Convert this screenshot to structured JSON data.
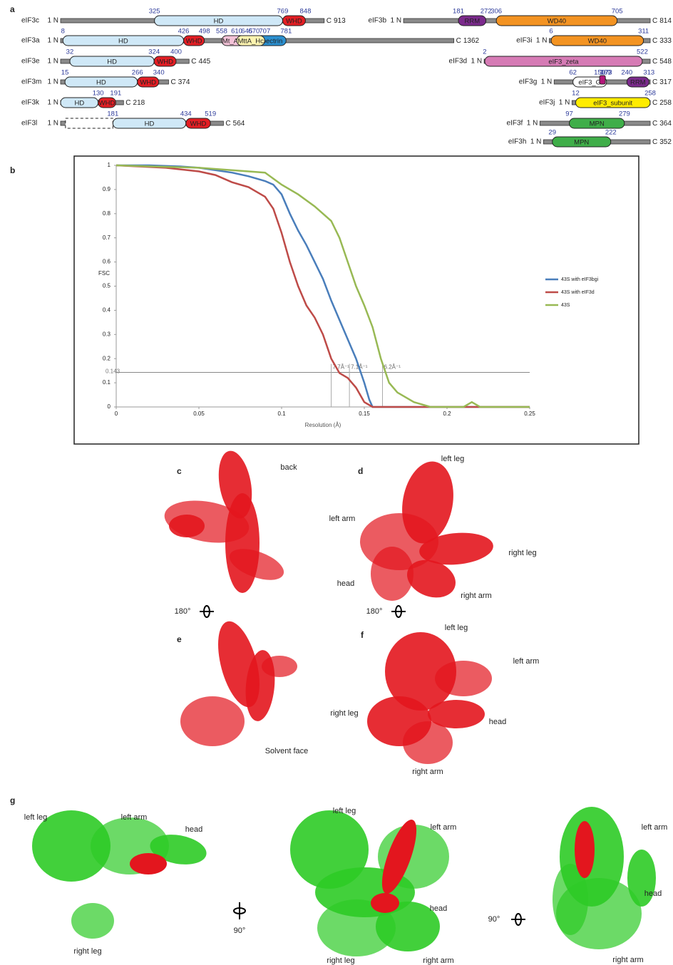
{
  "panel_letters": [
    "a",
    "b",
    "c",
    "d",
    "e",
    "f",
    "g"
  ],
  "domain_map": {
    "proteins": [
      {
        "name": "eIF3c",
        "n_label": "1 N",
        "c_label": "C",
        "length": 913,
        "domains": [
          {
            "name": "HD",
            "start": 325,
            "color": "#cfe8f7"
          },
          {
            "name": "WHD",
            "start": 769,
            "end": 848,
            "color": "#e31e24"
          }
        ]
      },
      {
        "name": "eIF3a",
        "n_label": "1 N",
        "c_label": "C",
        "length": 1362,
        "domains": [
          {
            "name": "HD",
            "start": 8,
            "color": "#cfe8f7"
          },
          {
            "name": "WHD",
            "start": 426,
            "end": 498,
            "color": "#e31e24"
          },
          {
            "name": "Mt_ATP",
            "start": 558,
            "end": 645,
            "color": "#f4c3d8"
          },
          {
            "name": "Spectrin",
            "start": 670,
            "end": 781,
            "color": "#2b8fcf"
          },
          {
            "name": "MttA_Hc",
            "start": 610,
            "end": 707,
            "color": "#fdf4b0"
          }
        ]
      },
      {
        "name": "eIF3e",
        "n_label": "1 N",
        "c_label": "C",
        "length": 445,
        "domains": [
          {
            "name": "HD",
            "start": 32,
            "color": "#cfe8f7"
          },
          {
            "name": "WHD",
            "start": 324,
            "end": 400,
            "color": "#e31e24"
          }
        ]
      },
      {
        "name": "eIF3m",
        "n_label": "1 N",
        "c_label": "C",
        "length": 374,
        "domains": [
          {
            "name": "HD",
            "start": 15,
            "color": "#cfe8f7"
          },
          {
            "name": "WHD",
            "start": 266,
            "end": 340,
            "color": "#e31e24"
          }
        ]
      },
      {
        "name": "eIF3k",
        "n_label": "1 N",
        "c_label": "C",
        "length": 218,
        "domains": [
          {
            "name": "HD",
            "color": "#cfe8f7"
          },
          {
            "name": "WHD",
            "start": 130,
            "end": 191,
            "color": "#e31e24"
          }
        ]
      },
      {
        "name": "eIF3l",
        "n_label": "1 N",
        "c_label": "C",
        "length": 564,
        "domains": [
          {
            "name": "HD",
            "dashed_end": 181,
            "color": "#cfe8f7"
          },
          {
            "name": "WHD",
            "start": 434,
            "end": 519,
            "color": "#e31e24"
          }
        ]
      },
      {
        "name": "eIF3b",
        "n_label": "1 N",
        "c_label": "C",
        "length": 814,
        "domains": [
          {
            "name": "RRM",
            "start": 181,
            "end": 272,
            "color": "#7b2a8c"
          },
          {
            "name": "WD40",
            "start": 306,
            "end": 705,
            "color": "#f39322"
          }
        ]
      },
      {
        "name": "eIF3i",
        "n_label": "1 N",
        "c_label": "C",
        "length": 333,
        "domains": [
          {
            "name": "WD40",
            "start": 6,
            "end": 311,
            "color": "#f39322"
          }
        ]
      },
      {
        "name": "eIF3d",
        "n_label": "1 N",
        "c_label": "C",
        "length": 548,
        "domains": [
          {
            "name": "eIF3_zeta",
            "start": 2,
            "end": 522,
            "color": "#d67bb5"
          }
        ]
      },
      {
        "name": "eIF3g",
        "n_label": "1 N",
        "c_label": "C",
        "length": 317,
        "domains": [
          {
            "name": "eIF3_G",
            "start": 62,
            "end": 173,
            "color": "#ffffff"
          },
          {
            "start": 150,
            "end": 169,
            "color": "#b5177a"
          },
          {
            "name": "RRM",
            "start": 240,
            "end": 313,
            "color": "#7b2a8c"
          }
        ]
      },
      {
        "name": "eIF3j",
        "n_label": "1 N",
        "c_label": "C",
        "length": 258,
        "domains": [
          {
            "name": "eIF3_subunit",
            "start": 12,
            "end": 258,
            "color": "#ffec00"
          }
        ]
      },
      {
        "name": "eIF3f",
        "n_label": "1 N",
        "c_label": "C",
        "length": 364,
        "domains": [
          {
            "name": "MPN",
            "start": 97,
            "end": 279,
            "color": "#3fae49"
          }
        ]
      },
      {
        "name": "eIF3h",
        "n_label": "1 N",
        "c_label": "C",
        "length": 352,
        "domains": [
          {
            "name": "MPN",
            "start": 29,
            "end": 222,
            "color": "#3fae49"
          }
        ]
      }
    ]
  },
  "chart_data": {
    "type": "line",
    "y_label": "FSC",
    "x_label": "Resolution (Å)",
    "xlim": [
      0,
      0.25
    ],
    "ylim": [
      0,
      1
    ],
    "xticks": [
      0,
      0.05,
      0.1,
      0.15,
      0.2,
      0.25
    ],
    "yticks": [
      0,
      0.1,
      0.2,
      0.3,
      0.4,
      0.5,
      0.6,
      0.7,
      0.8,
      0.9,
      1
    ],
    "threshold": 0.143,
    "annotations": [
      {
        "label": "7.7Å⁻¹",
        "x": 0.13
      },
      {
        "label": "7.1Å⁻¹",
        "x": 0.141
      },
      {
        "label": "6.2Å⁻¹",
        "x": 0.161
      }
    ],
    "series": [
      {
        "name": "43S with eIF3bgi",
        "color": "#4a7ebb",
        "x": [
          0,
          0.02,
          0.04,
          0.05,
          0.06,
          0.07,
          0.08,
          0.09,
          0.095,
          0.1,
          0.105,
          0.11,
          0.115,
          0.12,
          0.125,
          0.13,
          0.135,
          0.14,
          0.145,
          0.15,
          0.153,
          0.155,
          0.25
        ],
        "values": [
          1,
          1,
          0.995,
          0.99,
          0.98,
          0.97,
          0.955,
          0.935,
          0.92,
          0.88,
          0.8,
          0.73,
          0.67,
          0.6,
          0.53,
          0.44,
          0.36,
          0.28,
          0.2,
          0.1,
          0.03,
          0,
          0
        ]
      },
      {
        "name": "43S with eIF3d",
        "color": "#be4b48",
        "x": [
          0,
          0.03,
          0.05,
          0.06,
          0.07,
          0.08,
          0.085,
          0.09,
          0.095,
          0.1,
          0.105,
          0.11,
          0.115,
          0.12,
          0.125,
          0.13,
          0.135,
          0.14,
          0.145,
          0.15,
          0.155,
          0.25
        ],
        "values": [
          1,
          0.99,
          0.975,
          0.96,
          0.93,
          0.91,
          0.89,
          0.87,
          0.82,
          0.72,
          0.6,
          0.5,
          0.42,
          0.37,
          0.3,
          0.2,
          0.14,
          0.12,
          0.08,
          0.02,
          0,
          0
        ]
      },
      {
        "name": "43S",
        "color": "#98b954",
        "x": [
          0,
          0.05,
          0.08,
          0.09,
          0.1,
          0.11,
          0.12,
          0.13,
          0.135,
          0.14,
          0.145,
          0.15,
          0.155,
          0.16,
          0.165,
          0.17,
          0.175,
          0.18,
          0.185,
          0.19,
          0.21,
          0.215,
          0.22,
          0.25
        ],
        "values": [
          1,
          0.99,
          0.975,
          0.97,
          0.92,
          0.88,
          0.83,
          0.77,
          0.7,
          0.6,
          0.5,
          0.42,
          0.33,
          0.2,
          0.1,
          0.06,
          0.04,
          0.02,
          0.01,
          0,
          0,
          0.02,
          0,
          0
        ]
      }
    ]
  },
  "views": [
    {
      "color": "#e3161e",
      "labels": [
        "back"
      ]
    },
    {
      "color": "#e3161e",
      "labels": [
        "left leg",
        "left arm",
        "right leg",
        "head",
        "right arm"
      ]
    },
    {
      "color": "#e3161e",
      "labels": [
        "Solvent face"
      ]
    },
    {
      "color": "#e3161e",
      "labels": [
        "left leg",
        "left arm",
        "right leg",
        "head",
        "right arm"
      ]
    },
    {
      "color": "#2ecb26",
      "highlight": "#e3161e",
      "labels": [
        "left leg",
        "left arm",
        "head",
        "right leg"
      ]
    },
    {
      "color": "#2ecb26",
      "highlight": "#e3161e",
      "labels": [
        "left leg",
        "left arm",
        "head",
        "right leg",
        "right arm"
      ]
    },
    {
      "color": "#2ecb26",
      "highlight": "#e3161e",
      "labels": [
        "left arm",
        "head",
        "right arm"
      ]
    }
  ],
  "rotations": [
    "180°",
    "180°",
    "90°",
    "90°"
  ]
}
